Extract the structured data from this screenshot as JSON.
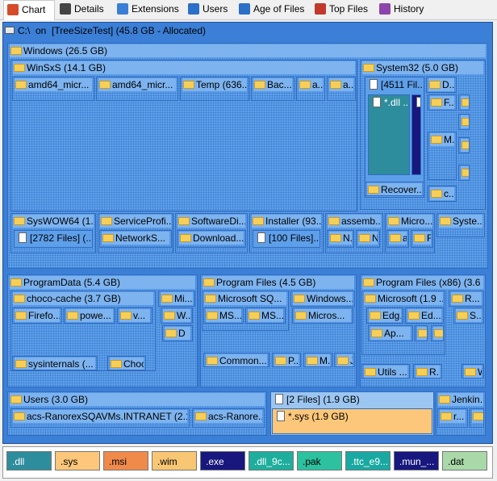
{
  "tabs": [
    "Chart",
    "Details",
    "Extensions",
    "Users",
    "Age of Files",
    "Top Files",
    "History"
  ],
  "root_label": "C:\\  on  [TreeSizeTest] (45.8 GB - Allocated)",
  "boxes": [
    {
      "label": "Windows (26.5 GB)",
      "icon": "folder"
    },
    {
      "label": "WinSxS (14.1 GB)",
      "icon": "folder"
    },
    {
      "label": "amd64_micr...",
      "icon": "folder"
    },
    {
      "label": "amd64_micr...",
      "icon": "folder"
    },
    {
      "label": "Temp (636...",
      "icon": "folder"
    },
    {
      "label": "Bac...",
      "icon": "folder"
    },
    {
      "label": "a...",
      "icon": "folder"
    },
    {
      "label": "a...",
      "icon": "folder"
    },
    {
      "label": "System32 (5.0 GB)",
      "icon": "folder"
    },
    {
      "label": "[4511 Fil...",
      "icon": "file"
    },
    {
      "label": "D...",
      "icon": "folder"
    },
    {
      "label": "*.dll ...",
      "icon": "file",
      "color": "#2e8d9c"
    },
    {
      "label": "*",
      "icon": "file",
      "color": "#17177e"
    },
    {
      "label": "F...",
      "icon": "folder"
    },
    {
      "label": "M...",
      "icon": "folder"
    },
    {
      "label": "c...",
      "icon": "folder"
    },
    {
      "label": "Recover...",
      "icon": "folder"
    },
    {
      "label": "w.",
      "icon": "folder"
    },
    {
      "label": "w.",
      "icon": "folder"
    },
    {
      "label": "d.",
      "icon": "folder"
    },
    {
      "label": "L.",
      "icon": "folder"
    },
    {
      "label": "SysWOW64 (1...",
      "icon": "folder"
    },
    {
      "label": "[2782 Files] (...",
      "icon": "file"
    },
    {
      "label": "ServiceProfi...",
      "icon": "folder"
    },
    {
      "label": "NetworkS...",
      "icon": "folder"
    },
    {
      "label": "SoftwareDi...",
      "icon": "folder"
    },
    {
      "label": "Download...",
      "icon": "folder"
    },
    {
      "label": "Installer (93...",
      "icon": "folder"
    },
    {
      "label": "[100 Files]...",
      "icon": "file"
    },
    {
      "label": "assemb...",
      "icon": "folder"
    },
    {
      "label": "N...",
      "icon": "folder"
    },
    {
      "label": "N",
      "icon": "folder"
    },
    {
      "label": "Micro...",
      "icon": "folder"
    },
    {
      "label": "a",
      "icon": "folder"
    },
    {
      "label": "F",
      "icon": "folder"
    },
    {
      "label": "Syste...",
      "icon": "folder"
    },
    {
      "label": "ProgramData (5.4 GB)",
      "icon": "folder"
    },
    {
      "label": "choco-cache (3.7 GB)",
      "icon": "folder"
    },
    {
      "label": "Firefo...",
      "icon": "folder"
    },
    {
      "label": "powe...",
      "icon": "folder"
    },
    {
      "label": "v...",
      "icon": "folder"
    },
    {
      "label": "sysinternals (...",
      "icon": "folder"
    },
    {
      "label": "Choc...",
      "icon": "folder"
    },
    {
      "label": "Mi...",
      "icon": "folder"
    },
    {
      "label": "W...",
      "icon": "folder"
    },
    {
      "label": "D",
      "icon": "folder"
    },
    {
      "label": "Program Files (4.5 GB)",
      "icon": "folder"
    },
    {
      "label": "Microsoft SQ...",
      "icon": "folder"
    },
    {
      "label": "Windows...",
      "icon": "folder"
    },
    {
      "label": "MS...",
      "icon": "folder"
    },
    {
      "label": "MS...",
      "icon": "folder"
    },
    {
      "label": "Micros...",
      "icon": "folder"
    },
    {
      "label": "Common...",
      "icon": "folder"
    },
    {
      "label": "P...",
      "icon": "folder"
    },
    {
      "label": "M...",
      "icon": "folder"
    },
    {
      "label": "J...",
      "icon": "folder"
    },
    {
      "label": "Program Files (x86) (3.6 ...",
      "icon": "folder"
    },
    {
      "label": "Microsoft (1.9 ...",
      "icon": "folder"
    },
    {
      "label": "R...",
      "icon": "folder"
    },
    {
      "label": "Edg...",
      "icon": "folder"
    },
    {
      "label": "Ed...",
      "icon": "folder"
    },
    {
      "label": "S...",
      "icon": "folder"
    },
    {
      "label": "Ap...",
      "icon": "folder"
    },
    {
      "label": "1.",
      "icon": "folder"
    },
    {
      "label": "1.",
      "icon": "folder"
    },
    {
      "label": "Utils ...",
      "icon": "folder"
    },
    {
      "label": "R...",
      "icon": "folder"
    },
    {
      "label": "Web...",
      "icon": "folder"
    },
    {
      "label": "Users (3.0 GB)",
      "icon": "folder"
    },
    {
      "label": "acs-RanorexSQAVMs.INTRANET (2.1...",
      "icon": "folder"
    },
    {
      "label": "acs-Ranore...",
      "icon": "folder"
    },
    {
      "label": "[2 Files] (1.9 GB)",
      "icon": "file",
      "color": "#9cc6f2"
    },
    {
      "label": "*.sys (1.9 GB)",
      "icon": "file",
      "color": "#fcc77a"
    },
    {
      "label": "Jenkin...",
      "icon": "folder"
    },
    {
      "label": "r...",
      "icon": "folder"
    },
    {
      "label": "w",
      "icon": "folder"
    }
  ],
  "legend": [
    {
      "label": ".dll",
      "color": "#2e8d9c"
    },
    {
      "label": ".sys",
      "color": "#fcc77a"
    },
    {
      "label": ".msi",
      "color": "#f08a4b"
    },
    {
      "label": ".wim",
      "color": "#f9c673"
    },
    {
      "label": ".exe",
      "color": "#17177e"
    },
    {
      "label": ".dll_9c...",
      "color": "#1fae9d"
    },
    {
      "label": ".pak",
      "color": "#2cc29f"
    },
    {
      "label": ".ttc_e9...",
      "color": "#1aa9a2"
    },
    {
      "label": ".mun_...",
      "color": "#17177e"
    },
    {
      "label": ".dat",
      "color": "#a9d8a9"
    }
  ]
}
